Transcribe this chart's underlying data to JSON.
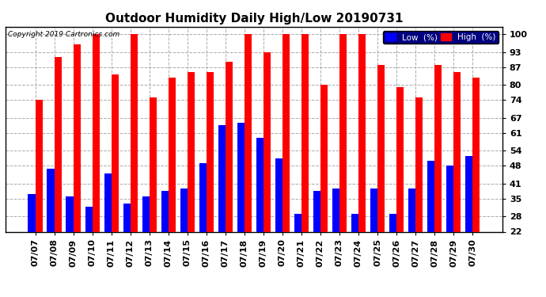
{
  "title": "Outdoor Humidity Daily High/Low 20190731",
  "copyright": "Copyright 2019 Cartronics.com",
  "dates": [
    "07/07",
    "07/08",
    "07/09",
    "07/10",
    "07/11",
    "07/12",
    "07/13",
    "07/14",
    "07/15",
    "07/16",
    "07/17",
    "07/18",
    "07/19",
    "07/20",
    "07/21",
    "07/22",
    "07/23",
    "07/24",
    "07/25",
    "07/26",
    "07/27",
    "07/28",
    "07/29",
    "07/30"
  ],
  "high": [
    74,
    91,
    96,
    100,
    84,
    100,
    75,
    83,
    85,
    85,
    89,
    100,
    93,
    100,
    100,
    80,
    100,
    100,
    88,
    79,
    75,
    88,
    85,
    83
  ],
  "low": [
    37,
    47,
    36,
    32,
    45,
    33,
    36,
    38,
    39,
    49,
    64,
    65,
    59,
    51,
    29,
    38,
    39,
    29,
    39,
    29,
    39,
    50,
    48,
    52
  ],
  "bar_color_high": "#ff0000",
  "bar_color_low": "#0000ff",
  "background_color": "#ffffff",
  "grid_color": "#aaaaaa",
  "yticks": [
    22,
    28,
    35,
    41,
    48,
    54,
    61,
    67,
    74,
    80,
    87,
    93,
    100
  ],
  "ymin": 22,
  "ymax": 103,
  "title_fontsize": 11,
  "tick_fontsize": 8,
  "legend_low_label": "Low  (%)",
  "legend_high_label": "High  (%)"
}
